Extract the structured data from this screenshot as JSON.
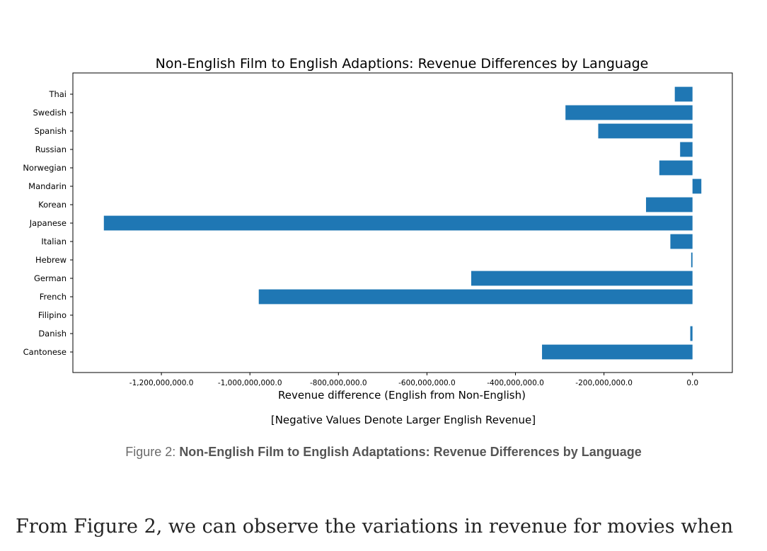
{
  "chart_data": {
    "type": "bar",
    "orientation": "horizontal",
    "title": "Non-English Film to English Adaptions: Revenue Differences by Language",
    "xlabel": "Revenue difference (English from Non-English)",
    "note": "[Negative Values Denote Larger English Revenue]",
    "categories": [
      "Cantonese",
      "Danish",
      "Filipino",
      "French",
      "German",
      "Hebrew",
      "Italian",
      "Japanese",
      "Korean",
      "Mandarin",
      "Norwegian",
      "Russian",
      "Spanish",
      "Swedish",
      "Thai"
    ],
    "values": [
      -340000000,
      -5000000,
      0,
      -980000000,
      -500000000,
      -3000000,
      -50000000,
      -1330000000,
      -105000000,
      20000000,
      -75000000,
      -28000000,
      -213000000,
      -287000000,
      -40000000
    ],
    "xticks": [
      -1200000000,
      -1000000000,
      -800000000,
      -600000000,
      -400000000,
      -200000000,
      0
    ],
    "xtick_labels": [
      "-1,200,000,000.0",
      "-1,000,000,000.0",
      "-800,000,000.0",
      "-600,000,000.0",
      "-400,000,000.0",
      "-200,000,000.0",
      "0.0"
    ],
    "xlim": [
      -1400000000,
      90000000
    ],
    "bar_color": "#1f77b4",
    "grid": false,
    "legend": "none"
  },
  "caption": {
    "prefix": "Figure 2: ",
    "bold": "Non-English Film to English Adaptations: Revenue Differences by Language"
  },
  "body": {
    "text": "From Figure 2, we can observe the variations in revenue for movies when"
  }
}
